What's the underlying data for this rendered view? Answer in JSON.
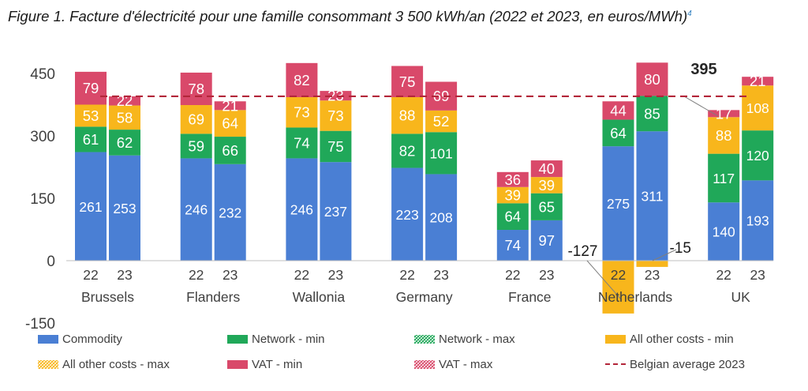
{
  "figure": {
    "title": "Figure 1. Facture d'électricité pour une famille consommant 3 500 kWh/an (2022 et 2023, en euros/MWh)",
    "footnote_ref": "4"
  },
  "colors": {
    "commodity": "#4a7fd4",
    "network": "#20a859",
    "other": "#f8b61c",
    "vat": "#d9496a",
    "average": "#b3263a",
    "text": "#404040"
  },
  "chart_data": {
    "type": "bar",
    "stacked": true,
    "ylim": [
      -150,
      450
    ],
    "yticks": [
      450,
      300,
      150,
      0,
      -150
    ],
    "countries": [
      "Brussels",
      "Flanders",
      "Wallonia",
      "Germany",
      "France",
      "Netherlands",
      "UK"
    ],
    "bars": [
      {
        "country": "Brussels",
        "year": "22",
        "commodity": 261,
        "network": 61,
        "other": 53,
        "vat": 79
      },
      {
        "country": "Brussels",
        "year": "23",
        "commodity": 253,
        "network": 62,
        "other": 58,
        "vat": 22
      },
      {
        "country": "Flanders",
        "year": "22",
        "commodity": 246,
        "network": 59,
        "other": 69,
        "vat": 78
      },
      {
        "country": "Flanders",
        "year": "23",
        "commodity": 232,
        "network": 66,
        "other": 64,
        "vat": 21
      },
      {
        "country": "Wallonia",
        "year": "22",
        "commodity": 246,
        "network": 74,
        "other": 73,
        "vat": 82
      },
      {
        "country": "Wallonia",
        "year": "23",
        "commodity": 237,
        "network": 75,
        "other": 73,
        "vat": 23
      },
      {
        "country": "Germany",
        "year": "22",
        "commodity": 223,
        "network": 82,
        "other": 88,
        "vat": 75
      },
      {
        "country": "Germany",
        "year": "23",
        "commodity": 208,
        "network": 101,
        "other": 52,
        "vat": 69
      },
      {
        "country": "France",
        "year": "22",
        "commodity": 74,
        "network": 64,
        "other": 39,
        "vat": 36
      },
      {
        "country": "France",
        "year": "23",
        "commodity": 97,
        "network": 65,
        "other": 39,
        "vat": 40
      },
      {
        "country": "Netherlands",
        "year": "22",
        "commodity": 275,
        "network": 64,
        "other": -127,
        "vat": 44
      },
      {
        "country": "Netherlands",
        "year": "23",
        "commodity": 311,
        "network": 85,
        "other": -15,
        "vat": 80
      },
      {
        "country": "UK",
        "year": "22",
        "commodity": 140,
        "network": 117,
        "other": 88,
        "vat": 17
      },
      {
        "country": "UK",
        "year": "23",
        "commodity": 193,
        "network": 120,
        "other": 108,
        "vat": 21
      }
    ],
    "belgian_average_2023": 395,
    "legend": [
      {
        "key": "commodity",
        "label": "Commodity",
        "pattern": "solid"
      },
      {
        "key": "network",
        "label": "Network - min",
        "pattern": "solid"
      },
      {
        "key": "network",
        "label": "Network - max",
        "pattern": "hatched"
      },
      {
        "key": "other",
        "label": "All other costs - min",
        "pattern": "solid"
      },
      {
        "key": "other",
        "label": "All other costs - max",
        "pattern": "hatched"
      },
      {
        "key": "vat",
        "label": "VAT - min",
        "pattern": "solid"
      },
      {
        "key": "vat",
        "label": "VAT - max",
        "pattern": "hatched"
      },
      {
        "key": "average",
        "label": "Belgian average 2023",
        "pattern": "dashed"
      }
    ],
    "legend_position": "bottom",
    "grid": false
  }
}
